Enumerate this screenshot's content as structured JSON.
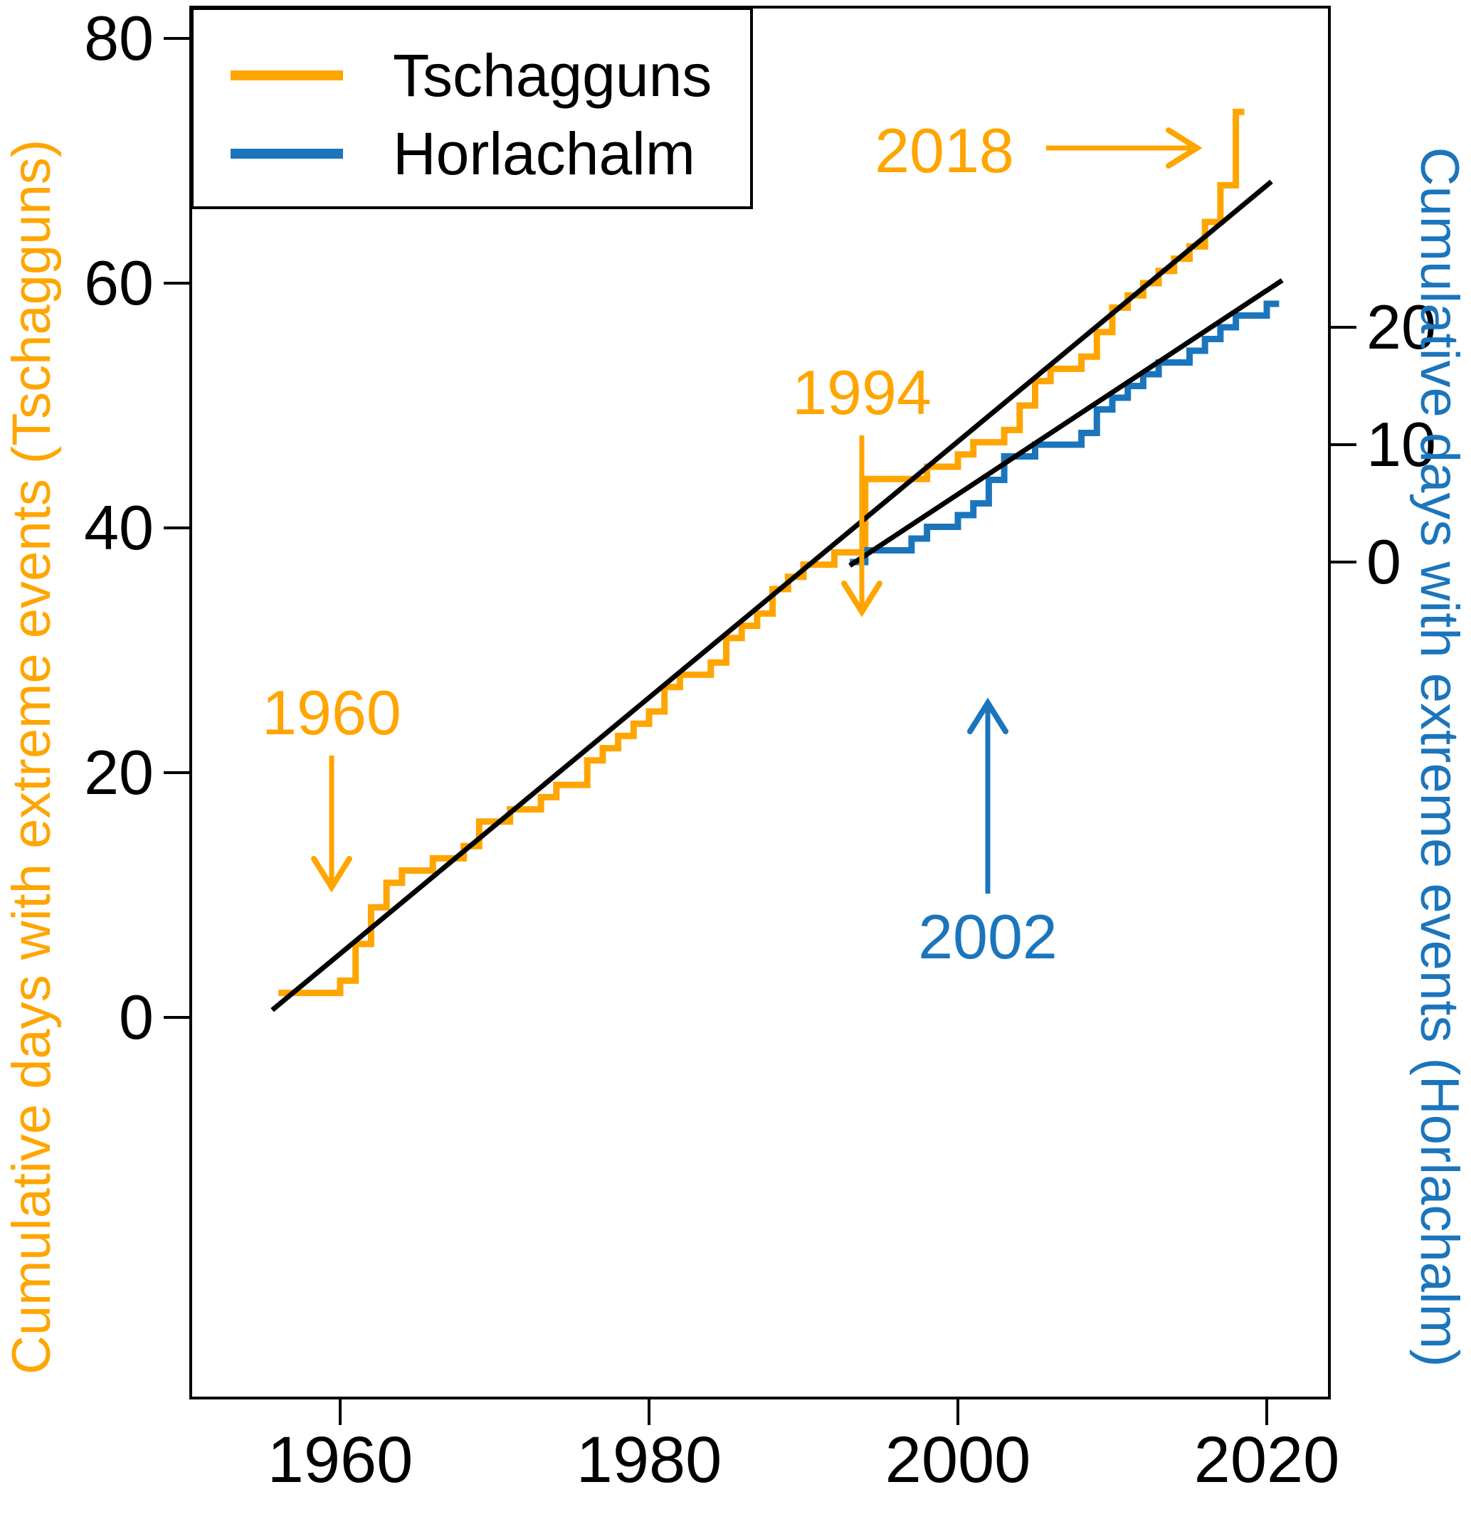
{
  "figure": {
    "background": "#ffffff"
  },
  "colors": {
    "tschagguns": "#FFA500",
    "horlachalm": "#1B75BC",
    "trend_line": "#000000",
    "axis": "#000000"
  },
  "chart_data": {
    "type": "line",
    "subtype": "cumulative-step",
    "title": "",
    "x_axis": {
      "ticks": [
        1960,
        1980,
        2000,
        2020
      ],
      "range": [
        1950.3,
        2023.9
      ],
      "grid": false
    },
    "y_left": {
      "label": "Cumulative days with extreme events (Tschagguns)",
      "color": "#FFA500",
      "ticks": [
        0,
        20,
        40,
        60,
        80
      ]
    },
    "y_right": {
      "label": "Cumulative days with extreme events (Horlachalm)",
      "color": "#1B75BC",
      "ticks": [
        0,
        10,
        20
      ]
    },
    "legend": {
      "position": "top-left",
      "items": [
        {
          "label": "Tschagguns",
          "color": "#FFA500"
        },
        {
          "label": "Horlachalm",
          "color": "#1B75BC"
        }
      ]
    },
    "series": [
      {
        "name": "Tschagguns",
        "axis": "left",
        "color": "#FFA500",
        "style": "step",
        "extend_to": 2018.55,
        "points": [
          [
            1956,
            2
          ],
          [
            1960,
            3
          ],
          [
            1961,
            6
          ],
          [
            1962,
            9
          ],
          [
            1963,
            11
          ],
          [
            1964,
            12
          ],
          [
            1966,
            13
          ],
          [
            1968,
            14
          ],
          [
            1969,
            16
          ],
          [
            1971,
            17
          ],
          [
            1973,
            18
          ],
          [
            1974,
            19
          ],
          [
            1976,
            21
          ],
          [
            1977,
            22
          ],
          [
            1978,
            23
          ],
          [
            1979,
            24
          ],
          [
            1980,
            25
          ],
          [
            1981,
            27
          ],
          [
            1982,
            28
          ],
          [
            1984,
            29
          ],
          [
            1985,
            31
          ],
          [
            1986,
            32
          ],
          [
            1987,
            33
          ],
          [
            1988,
            35
          ],
          [
            1989,
            36
          ],
          [
            1990,
            37
          ],
          [
            1992,
            38
          ],
          [
            1994,
            44
          ],
          [
            1998,
            45
          ],
          [
            2000,
            46
          ],
          [
            2001,
            47
          ],
          [
            2003,
            48
          ],
          [
            2004,
            50
          ],
          [
            2005,
            52
          ],
          [
            2006,
            53
          ],
          [
            2008,
            54
          ],
          [
            2009,
            56
          ],
          [
            2010,
            58
          ],
          [
            2011,
            59
          ],
          [
            2012,
            60
          ],
          [
            2013,
            61
          ],
          [
            2014,
            62
          ],
          [
            2015,
            63
          ],
          [
            2016,
            65
          ],
          [
            2017,
            68
          ],
          [
            2018,
            74
          ]
        ]
      },
      {
        "name": "Horlachalm",
        "axis": "right",
        "color": "#1B75BC",
        "style": "step",
        "extend_to": 2020.8,
        "points": [
          [
            1993,
            0
          ],
          [
            1994,
            1
          ],
          [
            1997,
            2
          ],
          [
            1998,
            3
          ],
          [
            2000,
            4
          ],
          [
            2001,
            5
          ],
          [
            2002,
            7
          ],
          [
            2003,
            9
          ],
          [
            2005,
            10
          ],
          [
            2008,
            11
          ],
          [
            2009,
            13
          ],
          [
            2010,
            14
          ],
          [
            2011,
            15
          ],
          [
            2012,
            16
          ],
          [
            2013,
            17
          ],
          [
            2015,
            18
          ],
          [
            2016,
            19
          ],
          [
            2017,
            20
          ],
          [
            2018,
            21
          ],
          [
            2020,
            22
          ]
        ]
      }
    ],
    "trend_lines": [
      {
        "series": "Tschagguns",
        "axis": "left",
        "from": [
          1955.6,
          0.6
        ],
        "to": [
          2020.3,
          68.3
        ],
        "color": "#000000"
      },
      {
        "series": "Horlachalm",
        "axis": "right",
        "from": [
          1993.0,
          -0.3
        ],
        "to": [
          2021.0,
          24.0
        ],
        "color": "#000000"
      }
    ],
    "annotations": [
      {
        "text": "1960",
        "color": "#FFA500",
        "arrow": "down"
      },
      {
        "text": "1994",
        "color": "#FFA500",
        "arrow": "down"
      },
      {
        "text": "2018",
        "color": "#FFA500",
        "arrow": "right"
      },
      {
        "text": "2002",
        "color": "#1B75BC",
        "arrow": "up"
      }
    ]
  }
}
